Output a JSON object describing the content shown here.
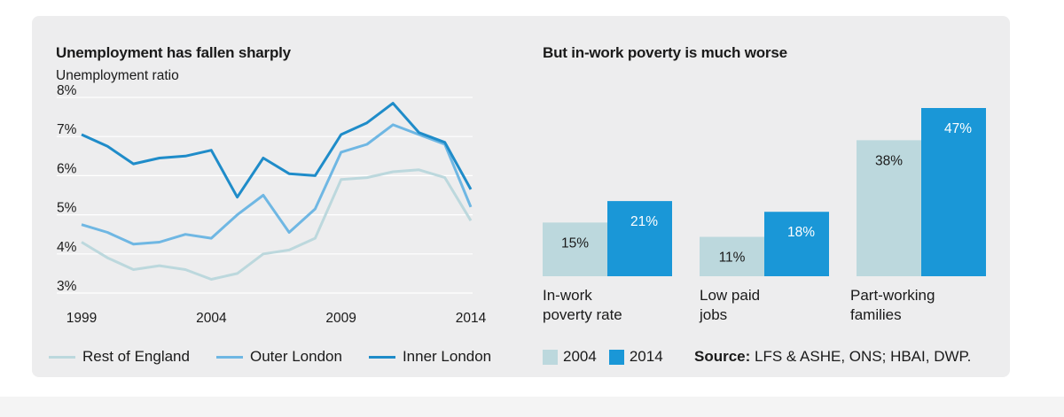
{
  "colors": {
    "rest_of_england": "#bcd8dd",
    "outer_london": "#6fb7e3",
    "inner_london": "#1f8cc9",
    "bar_2004": "#bcd8dd",
    "bar_2014": "#1a97d7",
    "panel_bg": "#ededee"
  },
  "chart_data": [
    {
      "type": "line",
      "title": "Unemployment has fallen sharply",
      "ylabel": "Unemployment ratio",
      "xlabel": "",
      "x": [
        1999,
        2000,
        2001,
        2002,
        2003,
        2004,
        2005,
        2006,
        2007,
        2008,
        2009,
        2010,
        2011,
        2012,
        2013,
        2014
      ],
      "x_ticks": [
        "1999",
        "2004",
        "2009",
        "2014"
      ],
      "y_ticks": [
        "8%",
        "7%",
        "6%",
        "5%",
        "4%",
        "3%"
      ],
      "ylim": [
        3,
        8
      ],
      "grid": true,
      "legend_position": "bottom",
      "series": [
        {
          "name": "Rest of England",
          "values": [
            4.3,
            3.9,
            3.6,
            3.7,
            3.6,
            3.35,
            3.5,
            4.0,
            4.1,
            4.4,
            5.9,
            5.95,
            6.1,
            6.15,
            5.95,
            4.85
          ]
        },
        {
          "name": "Outer London",
          "values": [
            4.75,
            4.55,
            4.25,
            4.3,
            4.5,
            4.4,
            5.0,
            5.5,
            4.55,
            5.15,
            6.6,
            6.8,
            7.3,
            7.05,
            6.8,
            5.2
          ]
        },
        {
          "name": "Inner London",
          "values": [
            7.05,
            6.75,
            6.3,
            6.45,
            6.5,
            6.65,
            5.45,
            6.45,
            6.05,
            6.0,
            7.05,
            7.35,
            7.85,
            7.1,
            6.85,
            5.65
          ]
        }
      ]
    },
    {
      "type": "bar",
      "title": "But in-work poverty is much worse",
      "categories": [
        "In-work poverty rate",
        "Low paid jobs",
        "Part-working families"
      ],
      "category_lines": [
        [
          "In-work",
          "poverty rate"
        ],
        [
          "Low paid",
          "jobs"
        ],
        [
          "Part-working",
          "families"
        ]
      ],
      "legend_position": "bottom",
      "series": [
        {
          "name": "2004",
          "values": [
            15,
            11,
            38
          ],
          "labels": [
            "15%",
            "11%",
            "38%"
          ]
        },
        {
          "name": "2014",
          "values": [
            21,
            18,
            47
          ],
          "labels": [
            "21%",
            "18%",
            "47%"
          ]
        }
      ]
    }
  ],
  "source": {
    "label": "Source:",
    "text": " LFS & ASHE, ONS; HBAI, DWP."
  }
}
